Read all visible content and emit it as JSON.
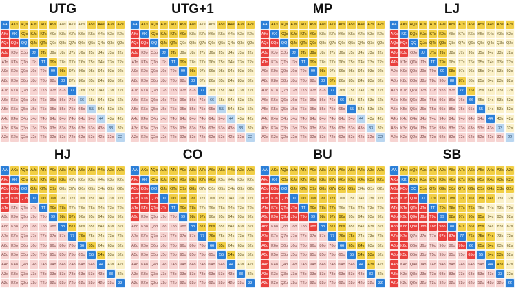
{
  "ranks": [
    "A",
    "K",
    "Q",
    "J",
    "T",
    "9",
    "8",
    "7",
    "6",
    "5",
    "4",
    "3",
    "2"
  ],
  "colors": {
    "pair_raise": "#2b7fd8",
    "suited_raise": "#f2cf45",
    "offsuit_raise": "#e9403d",
    "mixed": "#b9d6f0",
    "suited_fold": "#fbf1c9",
    "offsuit_fold": "#f7d4d2"
  },
  "panels": [
    {
      "title": "UTG",
      "raise": [
        "AA",
        "KK",
        "QQ",
        "JJ",
        "TT",
        "99",
        "88",
        "77",
        "AKs",
        "AQs",
        "AJs",
        "ATs",
        "A9s",
        "A5s",
        "A4s",
        "A3s",
        "A2s",
        "KQs",
        "KJs",
        "KTs",
        "QJs",
        "QTs",
        "JTs",
        "T9s",
        "98s",
        "AKo",
        "AQo",
        "AJo",
        "KQo"
      ],
      "mix": [
        "66",
        "55",
        "44",
        "33",
        "22"
      ]
    },
    {
      "title": "UTG+1",
      "raise": [
        "AA",
        "KK",
        "QQ",
        "JJ",
        "TT",
        "99",
        "88",
        "77",
        "AKs",
        "AQs",
        "AJs",
        "ATs",
        "A9s",
        "A8s",
        "A5s",
        "A4s",
        "A3s",
        "A2s",
        "KQs",
        "KJs",
        "KTs",
        "K9s",
        "QJs",
        "QTs",
        "JTs",
        "T9s",
        "98s",
        "AKo",
        "AQo",
        "AJo",
        "KQo"
      ],
      "mix": [
        "66",
        "55",
        "44",
        "33",
        "22"
      ]
    },
    {
      "title": "MP",
      "raise": [
        "AA",
        "KK",
        "QQ",
        "JJ",
        "TT",
        "99",
        "88",
        "77",
        "66",
        "55",
        "AKs",
        "AQs",
        "AJs",
        "ATs",
        "A9s",
        "A8s",
        "A7s",
        "A6s",
        "A5s",
        "A4s",
        "A3s",
        "A2s",
        "KQs",
        "KJs",
        "KTs",
        "K9s",
        "QJs",
        "QTs",
        "Q9s",
        "JTs",
        "J9s",
        "T9s",
        "98s",
        "87s",
        "AKo",
        "AQo",
        "AJo",
        "ATo",
        "KQo"
      ],
      "mix": [
        "44",
        "33",
        "22"
      ]
    },
    {
      "title": "LJ",
      "raise": [
        "AA",
        "KK",
        "QQ",
        "JJ",
        "TT",
        "99",
        "88",
        "77",
        "66",
        "55",
        "44",
        "AKs",
        "AQs",
        "AJs",
        "ATs",
        "A9s",
        "A8s",
        "A7s",
        "A6s",
        "A5s",
        "A4s",
        "A3s",
        "A2s",
        "KQs",
        "KJs",
        "KTs",
        "K9s",
        "QJs",
        "QTs",
        "Q9s",
        "JTs",
        "J9s",
        "T9s",
        "98s",
        "87s",
        "76s",
        "AKo",
        "AQo",
        "AJo",
        "ATo",
        "KQo",
        "KJo"
      ],
      "mix": [
        "33",
        "22"
      ]
    },
    {
      "title": "HJ",
      "raise": [
        "AA",
        "KK",
        "QQ",
        "JJ",
        "TT",
        "99",
        "88",
        "77",
        "66",
        "55",
        "44",
        "33",
        "22",
        "AKs",
        "AQs",
        "AJs",
        "ATs",
        "A9s",
        "A8s",
        "A7s",
        "A6s",
        "A5s",
        "A4s",
        "A3s",
        "A2s",
        "KQs",
        "KJs",
        "KTs",
        "K9s",
        "K8s",
        "QJs",
        "QTs",
        "Q9s",
        "JTs",
        "J9s",
        "T9s",
        "T8s",
        "98s",
        "97s",
        "87s",
        "76s",
        "65s",
        "54s",
        "AKo",
        "AQo",
        "AJo",
        "ATo",
        "KQo",
        "KJo",
        "QJo"
      ],
      "mix": []
    },
    {
      "title": "CO",
      "raise": [
        "AA",
        "KK",
        "QQ",
        "JJ",
        "TT",
        "99",
        "88",
        "77",
        "66",
        "55",
        "44",
        "33",
        "22",
        "AKs",
        "AQs",
        "AJs",
        "ATs",
        "A9s",
        "A8s",
        "A7s",
        "A6s",
        "A5s",
        "A4s",
        "A3s",
        "A2s",
        "KQs",
        "KJs",
        "KTs",
        "K9s",
        "K8s",
        "K7s",
        "K6s",
        "QJs",
        "QTs",
        "Q9s",
        "Q8s",
        "JTs",
        "J9s",
        "J8s",
        "T9s",
        "T8s",
        "98s",
        "97s",
        "87s",
        "86s",
        "76s",
        "65s",
        "54s",
        "AKo",
        "AQo",
        "AJo",
        "ATo",
        "A9o",
        "KQo",
        "KJo",
        "KTo",
        "QJo",
        "QTo",
        "JTo"
      ],
      "mix": []
    },
    {
      "title": "BU",
      "raise": [
        "AA",
        "KK",
        "QQ",
        "JJ",
        "TT",
        "99",
        "88",
        "77",
        "66",
        "55",
        "44",
        "33",
        "22",
        "AKs",
        "AQs",
        "AJs",
        "ATs",
        "A9s",
        "A8s",
        "A7s",
        "A6s",
        "A5s",
        "A4s",
        "A3s",
        "A2s",
        "KQs",
        "KJs",
        "KTs",
        "K9s",
        "K8s",
        "K7s",
        "K6s",
        "K5s",
        "K4s",
        "K3s",
        "K2s",
        "QJs",
        "QTs",
        "Q9s",
        "Q8s",
        "Q7s",
        "Q6s",
        "Q5s",
        "JTs",
        "J9s",
        "J8s",
        "J7s",
        "T9s",
        "T8s",
        "T7s",
        "98s",
        "97s",
        "96s",
        "87s",
        "86s",
        "76s",
        "75s",
        "65s",
        "64s",
        "54s",
        "53s",
        "43s",
        "AKo",
        "AQo",
        "AJo",
        "ATo",
        "A9o",
        "A8o",
        "A7o",
        "A6o",
        "A5o",
        "A4o",
        "A3o",
        "A2o",
        "KQo",
        "KJo",
        "KTo",
        "K9o",
        "QJo",
        "QTo",
        "Q9o",
        "JTo",
        "J9o",
        "T9o",
        "98o"
      ],
      "mix": []
    },
    {
      "title": "SB",
      "raise": [
        "AA",
        "KK",
        "QQ",
        "JJ",
        "TT",
        "99",
        "88",
        "77",
        "66",
        "55",
        "44",
        "33",
        "22",
        "AKs",
        "AQs",
        "AJs",
        "ATs",
        "A9s",
        "A8s",
        "A7s",
        "A6s",
        "A5s",
        "A4s",
        "A3s",
        "A2s",
        "KQs",
        "KJs",
        "KTs",
        "K9s",
        "K8s",
        "K7s",
        "K6s",
        "K5s",
        "K4s",
        "K3s",
        "K2s",
        "QJs",
        "QTs",
        "Q9s",
        "Q8s",
        "Q7s",
        "Q6s",
        "Q5s",
        "Q4s",
        "Q3s",
        "Q2s",
        "JTs",
        "J9s",
        "J8s",
        "J7s",
        "J6s",
        "J5s",
        "J4s",
        "T9s",
        "T8s",
        "T7s",
        "T6s",
        "98s",
        "97s",
        "96s",
        "95s",
        "87s",
        "86s",
        "85s",
        "76s",
        "75s",
        "74s",
        "65s",
        "64s",
        "54s",
        "53s",
        "43s",
        "AKo",
        "AQo",
        "AJo",
        "ATo",
        "A9o",
        "A8o",
        "A7o",
        "A6o",
        "A5o",
        "A4o",
        "A3o",
        "A2o",
        "KQo",
        "KJo",
        "KTo",
        "K9o",
        "K8o",
        "K7o",
        "K6o",
        "K5o",
        "QJo",
        "QTo",
        "Q9o",
        "Q8o",
        "JTo",
        "J9o",
        "J8o",
        "T9o",
        "T8o",
        "98o",
        "97o",
        "87o",
        "76o",
        "65o"
      ],
      "mix": []
    }
  ]
}
